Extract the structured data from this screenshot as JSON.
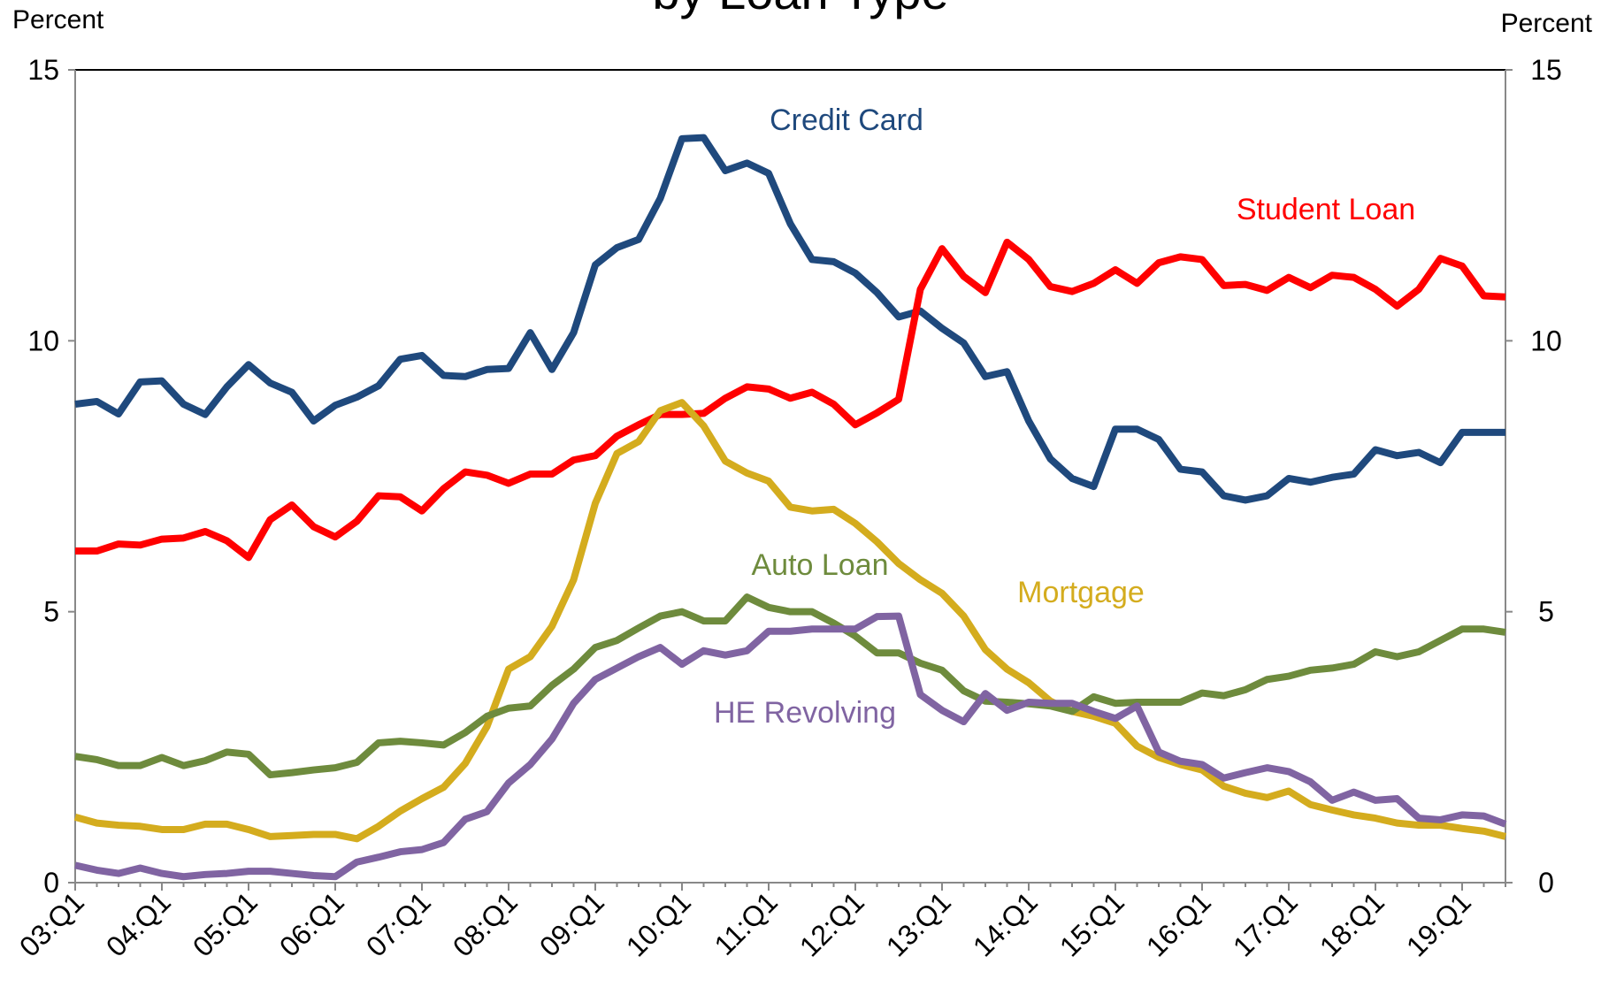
{
  "chart_data": {
    "type": "line",
    "title": "by Loan Type",
    "y_label": "Percent",
    "y2_label": "Percent",
    "categories": [
      "03:Q1",
      null,
      null,
      null,
      "04:Q1",
      null,
      null,
      null,
      "05:Q1",
      null,
      null,
      null,
      "06:Q1",
      null,
      null,
      null,
      "07:Q1",
      null,
      null,
      null,
      "08:Q1",
      null,
      null,
      null,
      "09:Q1",
      null,
      null,
      null,
      "10:Q1",
      null,
      null,
      null,
      "11:Q1",
      null,
      null,
      null,
      "12:Q1",
      null,
      null,
      null,
      "13:Q1",
      null,
      null,
      null,
      "14:Q1",
      null,
      null,
      null,
      "15:Q1",
      null,
      null,
      null,
      "16:Q1",
      null,
      null,
      null,
      "17:Q1",
      null,
      null,
      null,
      "18:Q1",
      null,
      null,
      null,
      "19:Q1",
      null,
      null
    ],
    "ylim": [
      0,
      15
    ],
    "yticks": [
      0,
      5,
      10,
      15
    ],
    "y2lim": [
      0,
      15
    ],
    "y2ticks": [
      0,
      5,
      10,
      15
    ],
    "series": [
      {
        "name": "Credit Card",
        "color": "#1f497d",
        "values": [
          8.83,
          8.88,
          8.65,
          9.24,
          9.26,
          8.83,
          8.64,
          9.15,
          9.56,
          9.22,
          9.05,
          8.52,
          8.81,
          8.96,
          9.17,
          9.66,
          9.73,
          9.36,
          9.34,
          9.47,
          9.49,
          10.15,
          9.47,
          10.15,
          11.4,
          11.72,
          11.87,
          12.63,
          13.73,
          13.75,
          13.14,
          13.28,
          13.09,
          12.16,
          11.5,
          11.46,
          11.25,
          10.89,
          10.44,
          10.55,
          10.23,
          9.96,
          9.34,
          9.43,
          8.52,
          7.82,
          7.46,
          7.31,
          8.37,
          8.37,
          8.18,
          7.63,
          7.58,
          7.14,
          7.06,
          7.14,
          7.46,
          7.39,
          7.48,
          7.54,
          7.99,
          7.88,
          7.94,
          7.75,
          8.31,
          8.31,
          8.31
        ]
      },
      {
        "name": "Student Loan",
        "color": "#ff0000",
        "values": [
          6.12,
          6.12,
          6.25,
          6.23,
          6.34,
          6.36,
          6.48,
          6.31,
          6.0,
          6.7,
          6.97,
          6.57,
          6.38,
          6.67,
          7.14,
          7.12,
          6.86,
          7.27,
          7.58,
          7.52,
          7.37,
          7.54,
          7.54,
          7.8,
          7.88,
          8.24,
          8.45,
          8.64,
          8.64,
          8.66,
          8.94,
          9.15,
          9.11,
          8.94,
          9.05,
          8.83,
          8.45,
          8.67,
          8.92,
          10.95,
          11.7,
          11.19,
          10.89,
          11.82,
          11.5,
          11.0,
          10.91,
          11.06,
          11.31,
          11.06,
          11.44,
          11.55,
          11.5,
          11.02,
          11.04,
          10.93,
          11.17,
          10.98,
          11.21,
          11.17,
          10.95,
          10.64,
          10.95,
          11.52,
          11.38,
          10.83,
          10.81
        ]
      },
      {
        "name": "Mortgage",
        "color": "#d4ac1e",
        "values": [
          1.21,
          1.1,
          1.06,
          1.04,
          0.98,
          0.98,
          1.08,
          1.08,
          0.98,
          0.85,
          0.87,
          0.89,
          0.89,
          0.81,
          1.04,
          1.32,
          1.55,
          1.76,
          2.2,
          2.88,
          3.94,
          4.17,
          4.73,
          5.59,
          7.0,
          7.92,
          8.14,
          8.71,
          8.86,
          8.43,
          7.78,
          7.56,
          7.41,
          6.93,
          6.86,
          6.89,
          6.63,
          6.29,
          5.89,
          5.59,
          5.34,
          4.92,
          4.3,
          3.94,
          3.69,
          3.35,
          3.16,
          3.07,
          2.94,
          2.52,
          2.31,
          2.18,
          2.08,
          1.78,
          1.65,
          1.57,
          1.69,
          1.44,
          1.34,
          1.25,
          1.19,
          1.1,
          1.06,
          1.06,
          1.0,
          0.95,
          0.85
        ]
      },
      {
        "name": "Auto Loan",
        "color": "#6e8b3d",
        "values": [
          2.33,
          2.27,
          2.16,
          2.16,
          2.31,
          2.16,
          2.25,
          2.41,
          2.37,
          1.99,
          2.03,
          2.08,
          2.12,
          2.22,
          2.58,
          2.61,
          2.58,
          2.54,
          2.77,
          3.07,
          3.22,
          3.26,
          3.64,
          3.94,
          4.34,
          4.47,
          4.7,
          4.92,
          5.0,
          4.83,
          4.83,
          5.27,
          5.08,
          5.0,
          5.0,
          4.79,
          4.55,
          4.24,
          4.24,
          4.05,
          3.92,
          3.54,
          3.35,
          3.33,
          3.3,
          3.26,
          3.16,
          3.43,
          3.31,
          3.33,
          3.33,
          3.33,
          3.5,
          3.45,
          3.56,
          3.75,
          3.81,
          3.92,
          3.96,
          4.03,
          4.26,
          4.17,
          4.26,
          4.47,
          4.68,
          4.68,
          4.62
        ]
      },
      {
        "name": "HE Revolving",
        "color": "#8064a2",
        "values": [
          0.32,
          0.23,
          0.17,
          0.27,
          0.17,
          0.11,
          0.15,
          0.17,
          0.21,
          0.21,
          0.17,
          0.13,
          0.11,
          0.38,
          0.47,
          0.57,
          0.61,
          0.74,
          1.17,
          1.31,
          1.84,
          2.18,
          2.65,
          3.31,
          3.75,
          3.96,
          4.17,
          4.34,
          4.03,
          4.28,
          4.2,
          4.28,
          4.64,
          4.64,
          4.68,
          4.68,
          4.68,
          4.91,
          4.92,
          3.47,
          3.18,
          2.97,
          3.49,
          3.18,
          3.33,
          3.31,
          3.31,
          3.16,
          3.03,
          3.26,
          2.41,
          2.24,
          2.18,
          1.93,
          2.03,
          2.12,
          2.05,
          1.86,
          1.52,
          1.67,
          1.52,
          1.55,
          1.19,
          1.16,
          1.25,
          1.23,
          1.08
        ]
      }
    ]
  }
}
